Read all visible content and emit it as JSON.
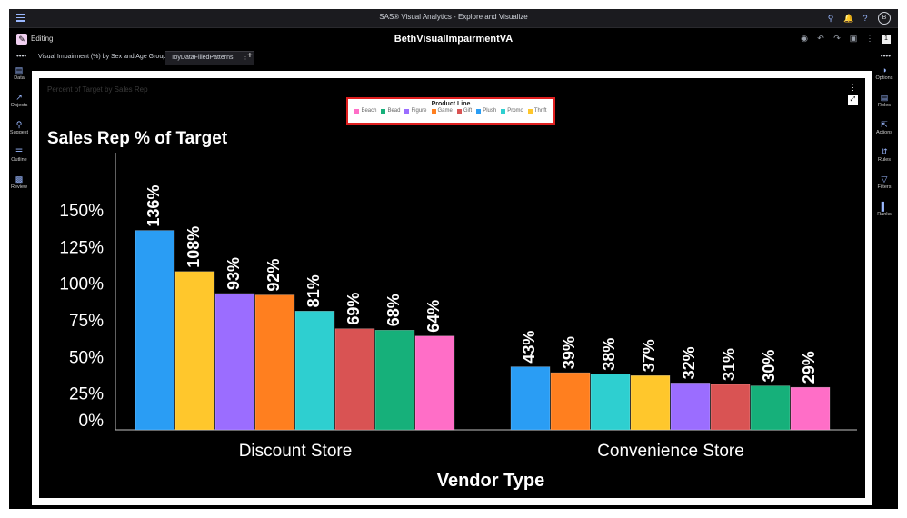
{
  "app": {
    "title": "SAS® Visual Analytics - Explore and Visualize",
    "avatar_initial": "B",
    "mode_label": "Editing",
    "report_title": "BethVisualImpairmentVA",
    "page_badge": "1"
  },
  "tabs": [
    {
      "label": "Visual Impairment (%) by Sex and Age Group",
      "active": false
    },
    {
      "label": "ToyDataFilledPatterns",
      "active": true
    }
  ],
  "left_panel": [
    {
      "label": "Data",
      "icon": "data-icon"
    },
    {
      "label": "Objects",
      "icon": "objects-icon"
    },
    {
      "label": "Suggest",
      "icon": "suggest-icon"
    },
    {
      "label": "Outline",
      "icon": "outline-icon"
    },
    {
      "label": "Review",
      "icon": "review-icon"
    }
  ],
  "right_panel": [
    {
      "label": "Options",
      "icon": "options-icon"
    },
    {
      "label": "Roles",
      "icon": "roles-icon"
    },
    {
      "label": "Actions",
      "icon": "actions-icon"
    },
    {
      "label": "Rules",
      "icon": "rules-icon"
    },
    {
      "label": "Filters",
      "icon": "filters-icon"
    },
    {
      "label": "Ranks",
      "icon": "ranks-icon"
    }
  ],
  "object": {
    "title": "Percent of Target by Sales Rep"
  },
  "chart_data": {
    "type": "bar",
    "title": "Sales Rep % of Target",
    "xlabel": "Vendor Type",
    "ylabel": "",
    "ylim": [
      0,
      1.5
    ],
    "y_ticks": [
      0,
      0.25,
      0.5,
      0.75,
      1.0,
      1.25,
      1.5
    ],
    "y_tick_labels": [
      "0%",
      "25%",
      "50%",
      "75%",
      "100%",
      "125%",
      "150%"
    ],
    "legend": {
      "title": "Product Line",
      "position": "top-center",
      "items": [
        {
          "name": "Beach",
          "color": "#ff6ec7"
        },
        {
          "name": "Bead",
          "color": "#16b07a"
        },
        {
          "name": "Figure",
          "color": "#9b6dff"
        },
        {
          "name": "Game",
          "color": "#ff7f1f"
        },
        {
          "name": "Gift",
          "color": "#d95353"
        },
        {
          "name": "Plush",
          "color": "#2a9df4"
        },
        {
          "name": "Promo",
          "color": "#2ecfd0"
        },
        {
          "name": "Thrift",
          "color": "#ffc72c"
        }
      ]
    },
    "groups": [
      {
        "category": "Discount Store",
        "bars": [
          {
            "series": "Plush",
            "value": 1.36,
            "label": "136%"
          },
          {
            "series": "Thrift",
            "value": 1.08,
            "label": "108%"
          },
          {
            "series": "Figure",
            "value": 0.93,
            "label": "93%"
          },
          {
            "series": "Game",
            "value": 0.92,
            "label": "92%"
          },
          {
            "series": "Promo",
            "value": 0.81,
            "label": "81%"
          },
          {
            "series": "Gift",
            "value": 0.69,
            "label": "69%"
          },
          {
            "series": "Bead",
            "value": 0.68,
            "label": "68%"
          },
          {
            "series": "Beach",
            "value": 0.64,
            "label": "64%"
          }
        ]
      },
      {
        "category": "Convenience Store",
        "bars": [
          {
            "series": "Plush",
            "value": 0.43,
            "label": "43%"
          },
          {
            "series": "Game",
            "value": 0.39,
            "label": "39%"
          },
          {
            "series": "Promo",
            "value": 0.38,
            "label": "38%"
          },
          {
            "series": "Thrift",
            "value": 0.37,
            "label": "37%"
          },
          {
            "series": "Figure",
            "value": 0.32,
            "label": "32%"
          },
          {
            "series": "Gift",
            "value": 0.31,
            "label": "31%"
          },
          {
            "series": "Bead",
            "value": 0.3,
            "label": "30%"
          },
          {
            "series": "Beach",
            "value": 0.29,
            "label": "29%"
          }
        ]
      }
    ]
  }
}
